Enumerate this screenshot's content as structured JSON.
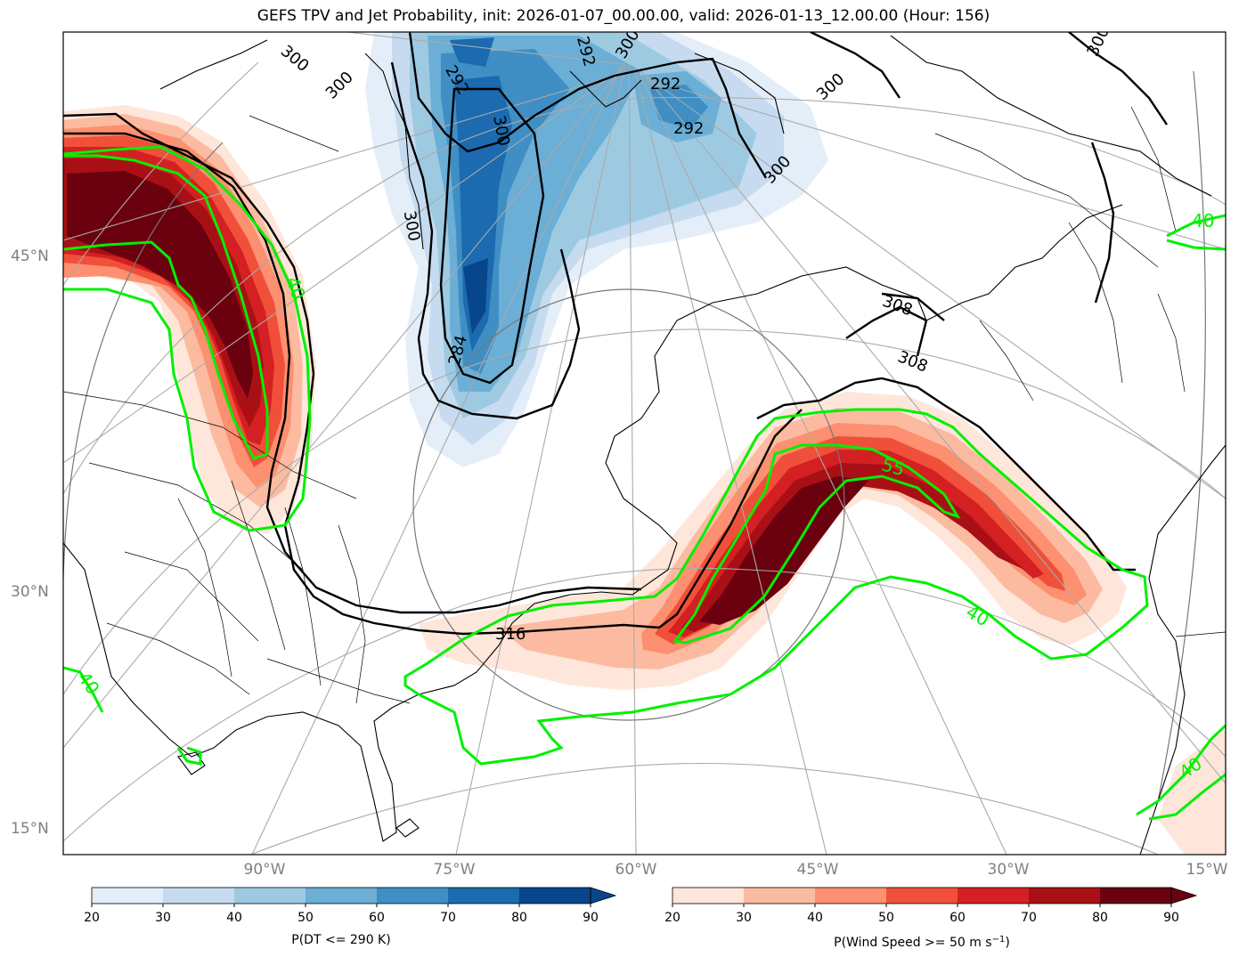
{
  "title": "GEFS TPV and Jet Probability, init: 2026-01-07_00.00.00, valid: 2026-01-13_12.00.00 (Hour: 156)",
  "lat_labels": [
    "45°N",
    "30°N",
    "15°N"
  ],
  "lon_labels": [
    "90°W",
    "75°W",
    "60°W",
    "45°W",
    "30°W",
    "15°W"
  ],
  "dt_contour_labels": [
    "300",
    "300",
    "292",
    "300",
    "292",
    "292",
    "300",
    "300",
    "300",
    "300",
    "284",
    "292",
    "300",
    "308",
    "308",
    "316"
  ],
  "wind_contour_labels": [
    "40",
    "40",
    "55",
    "40",
    "40",
    "40"
  ],
  "colorbar_left": {
    "label": "P(DT <= 290 K)",
    "ticks": [
      "20",
      "30",
      "40",
      "50",
      "60",
      "70",
      "80",
      "90"
    ],
    "colors": [
      "#e3eef9",
      "#c6dbef",
      "#9ecae1",
      "#6baed6",
      "#3f8fc5",
      "#1c6aaf",
      "#08468b"
    ]
  },
  "colorbar_right": {
    "label_prefix": "P(Wind Speed >= 50 m s",
    "label_sup": "−1",
    "label_suffix": ")",
    "ticks": [
      "20",
      "30",
      "40",
      "50",
      "60",
      "70",
      "80",
      "90"
    ],
    "colors": [
      "#fee6da",
      "#fcbba1",
      "#fc9070",
      "#f0503a",
      "#d42022",
      "#a91016",
      "#6b010e"
    ]
  }
}
